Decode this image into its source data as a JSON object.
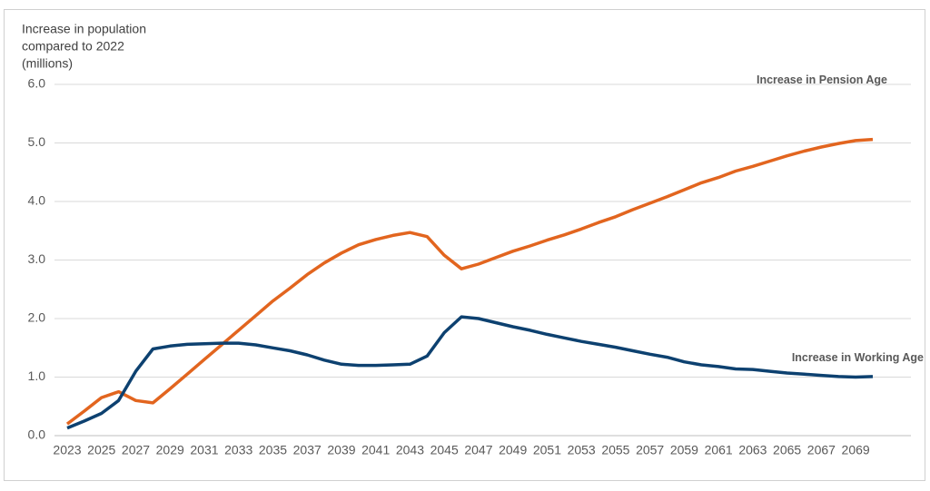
{
  "chart_data": {
    "type": "line",
    "ylabel": [
      "Increase in population",
      "compared to 2022",
      "(millions)"
    ],
    "x": [
      2023,
      2024,
      2025,
      2026,
      2027,
      2028,
      2029,
      2030,
      2031,
      2032,
      2033,
      2034,
      2035,
      2036,
      2037,
      2038,
      2039,
      2040,
      2041,
      2042,
      2043,
      2044,
      2045,
      2046,
      2047,
      2048,
      2049,
      2050,
      2051,
      2052,
      2053,
      2054,
      2055,
      2056,
      2057,
      2058,
      2059,
      2060,
      2061,
      2062,
      2063,
      2064,
      2065,
      2066,
      2067,
      2068,
      2069,
      2070
    ],
    "series": [
      {
        "name": "Increase in Pension Age",
        "color": "#e2651f",
        "values": [
          0.2,
          0.42,
          0.65,
          0.75,
          0.6,
          0.56,
          0.8,
          1.05,
          1.3,
          1.55,
          1.8,
          2.05,
          2.3,
          2.52,
          2.75,
          2.95,
          3.12,
          3.26,
          3.35,
          3.42,
          3.47,
          3.4,
          3.08,
          2.85,
          2.93,
          3.04,
          3.15,
          3.24,
          3.34,
          3.43,
          3.53,
          3.64,
          3.74,
          3.86,
          3.97,
          4.08,
          4.2,
          4.32,
          4.41,
          4.52,
          4.6,
          4.69,
          4.78,
          4.86,
          4.93,
          4.99,
          5.04,
          5.06
        ]
      },
      {
        "name": "Increase in Working Age",
        "color": "#0d4170",
        "values": [
          0.13,
          0.25,
          0.38,
          0.6,
          1.1,
          1.48,
          1.53,
          1.56,
          1.57,
          1.58,
          1.58,
          1.55,
          1.5,
          1.45,
          1.38,
          1.29,
          1.22,
          1.2,
          1.2,
          1.21,
          1.22,
          1.36,
          1.76,
          2.03,
          2.0,
          1.93,
          1.86,
          1.8,
          1.73,
          1.67,
          1.61,
          1.56,
          1.51,
          1.45,
          1.39,
          1.34,
          1.26,
          1.21,
          1.18,
          1.14,
          1.13,
          1.1,
          1.07,
          1.05,
          1.03,
          1.01,
          1.0,
          1.01
        ]
      }
    ],
    "xlim": [
      2023,
      2070
    ],
    "xticks": [
      2023,
      2025,
      2027,
      2029,
      2031,
      2033,
      2035,
      2037,
      2039,
      2041,
      2043,
      2045,
      2047,
      2049,
      2051,
      2053,
      2055,
      2057,
      2059,
      2061,
      2063,
      2065,
      2067,
      2069
    ],
    "ylim": [
      0,
      6
    ],
    "yticks": [
      {
        "value": 0,
        "label": "0.0"
      },
      {
        "value": 1,
        "label": "1.0"
      },
      {
        "value": 2,
        "label": "2.0"
      },
      {
        "value": 3,
        "label": "3.0"
      },
      {
        "value": 4,
        "label": "4.0"
      },
      {
        "value": 5,
        "label": "5.0"
      },
      {
        "value": 6,
        "label": "6.0"
      }
    ],
    "grid": true
  }
}
